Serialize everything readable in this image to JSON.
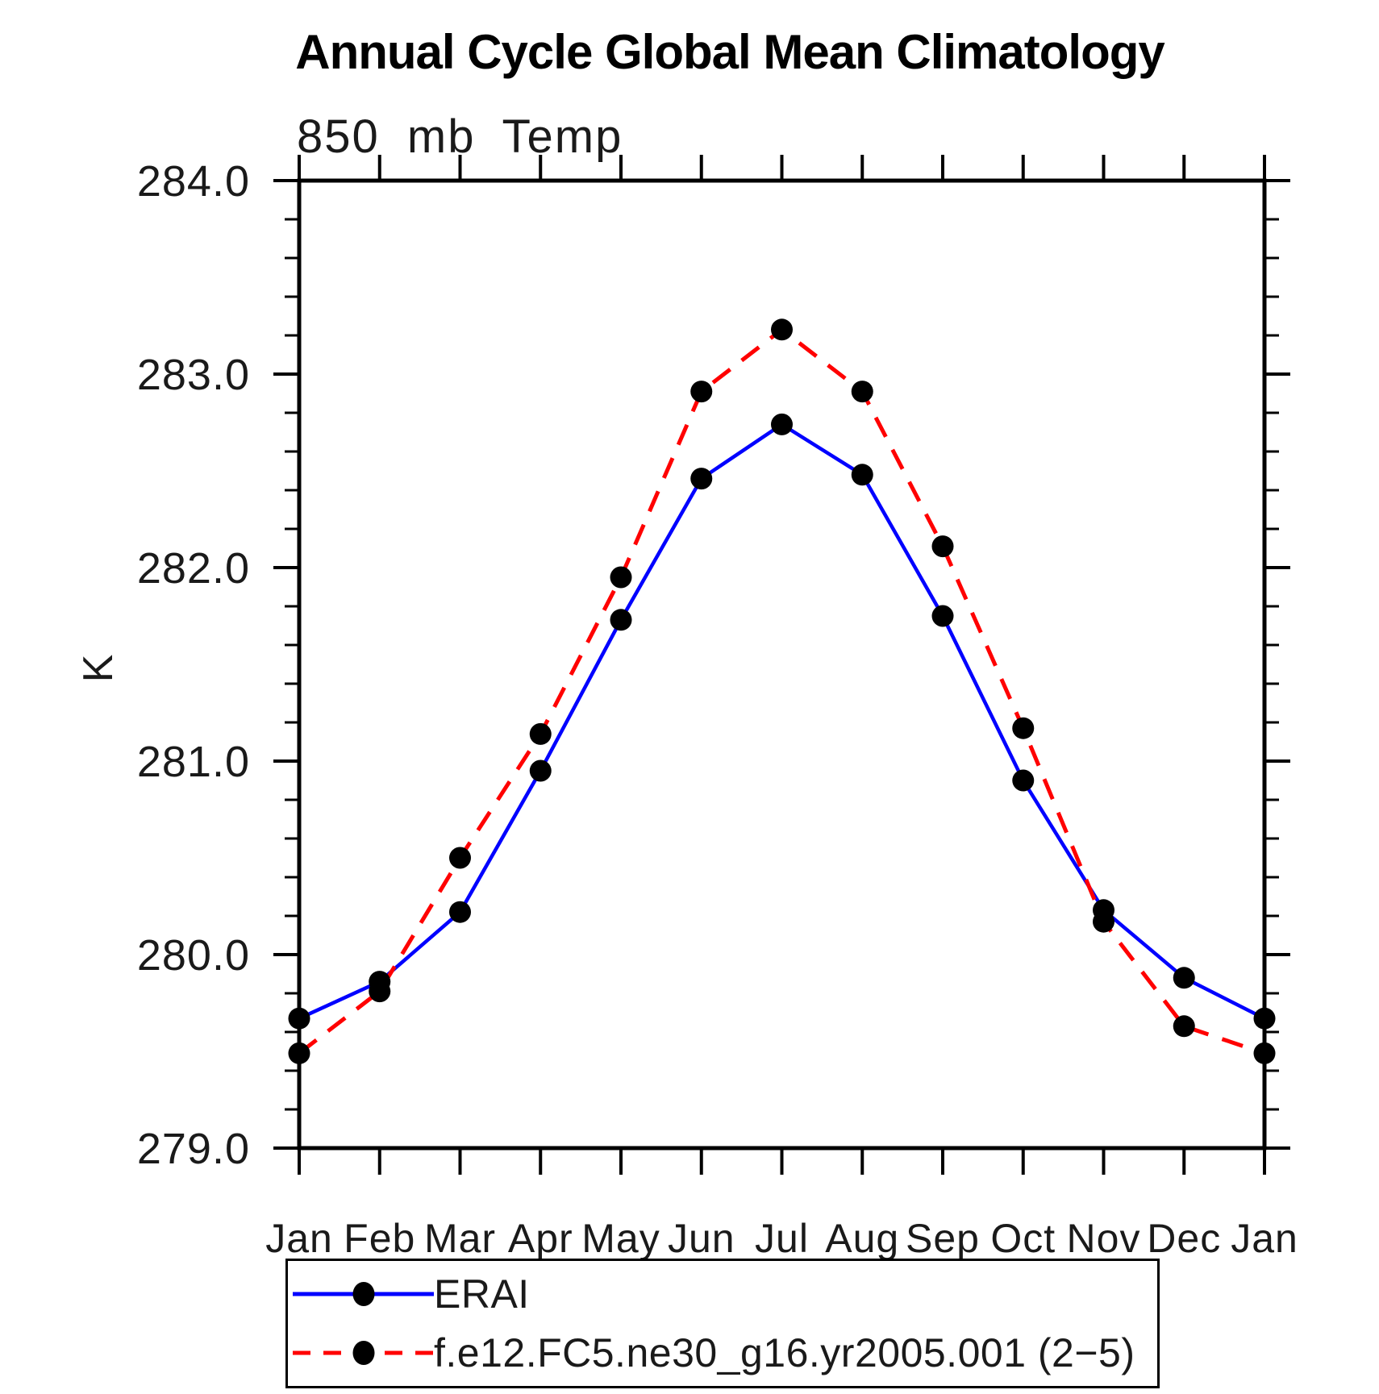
{
  "header": {
    "title": "Annual Cycle Global Mean Climatology"
  },
  "chart_data": {
    "type": "line",
    "title": "850 mb Temp",
    "xlabel": "",
    "ylabel": "K",
    "categories": [
      "Jan",
      "Feb",
      "Mar",
      "Apr",
      "May",
      "Jun",
      "Jul",
      "Aug",
      "Sep",
      "Oct",
      "Nov",
      "Dec",
      "Jan"
    ],
    "series": [
      {
        "name": "ERAI",
        "color": "#0000ff",
        "line_style": "solid",
        "marker": "filled-circle",
        "marker_color": "#000000",
        "values": [
          279.67,
          279.86,
          280.22,
          280.95,
          281.73,
          282.46,
          282.74,
          282.48,
          281.75,
          280.9,
          280.23,
          279.88,
          279.67
        ]
      },
      {
        "name": "f.e12.FC5.ne30_g16.yr2005.001 (2−5)",
        "color": "#ff0000",
        "line_style": "dashed",
        "marker": "filled-circle",
        "marker_color": "#000000",
        "values": [
          279.49,
          279.81,
          280.5,
          281.14,
          281.95,
          282.91,
          283.23,
          282.91,
          282.11,
          281.17,
          280.17,
          279.63,
          279.49
        ]
      }
    ],
    "ylim": [
      279.0,
      284.0
    ],
    "ytick_step": 1.0,
    "ytick_minor_step": 0.2,
    "ytick_labels": [
      "279.0",
      "280.0",
      "281.0",
      "282.0",
      "283.0",
      "284.0"
    ],
    "grid": false,
    "frame": "box",
    "axis_color": "#000000",
    "legend_position": "bottom-left"
  }
}
